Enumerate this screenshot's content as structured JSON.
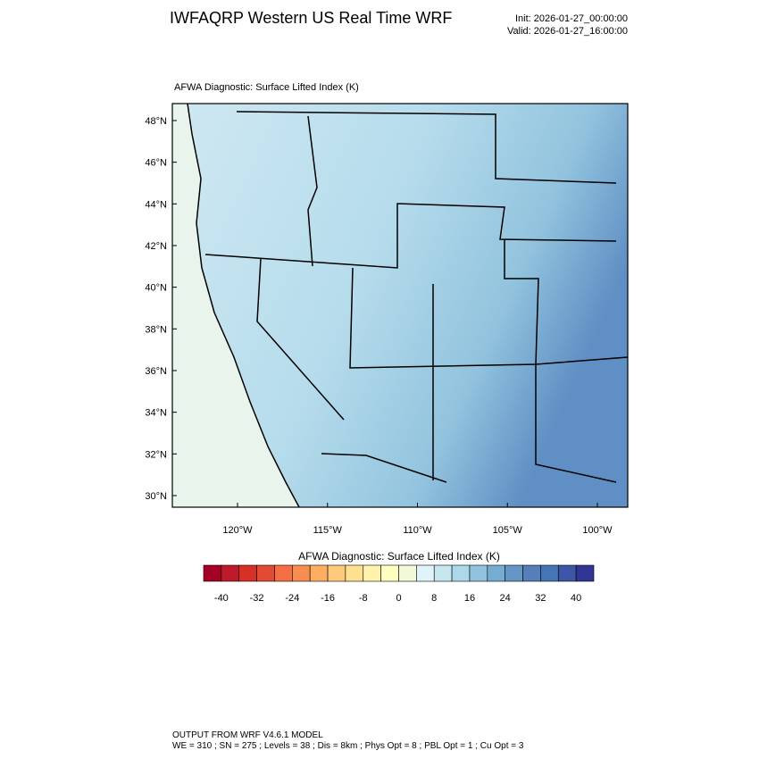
{
  "header": {
    "title": "IWFAQRP Western US Real Time WRF",
    "init": "Init: 2026-01-27_00:00:00",
    "valid": "Valid: 2026-01-27_16:00:00"
  },
  "plot": {
    "subtitle": "AFWA Diagnostic: Surface Lifted Index   (K)",
    "lat_labels": [
      "48°N",
      "46°N",
      "44°N",
      "42°N",
      "40°N",
      "38°N",
      "36°N",
      "34°N",
      "32°N",
      "30°N"
    ],
    "lon_labels": [
      "120°W",
      "115°W",
      "110°W",
      "105°W",
      "100°W"
    ]
  },
  "colorbar": {
    "title": "AFWA Diagnostic: Surface Lifted Index  (K)",
    "colors": [
      "#a50026",
      "#be1a2a",
      "#d73027",
      "#e34a33",
      "#f46d43",
      "#f88d52",
      "#fdae61",
      "#fec97a",
      "#fee090",
      "#fff2ac",
      "#ffffbf",
      "#f1f9d8",
      "#e0f3f8",
      "#c6e6f0",
      "#abd9e9",
      "#91c3de",
      "#74add1",
      "#6495c5",
      "#567eb9",
      "#4575b4",
      "#3d56a5",
      "#313695"
    ],
    "labels": [
      "-40",
      "-32",
      "-24",
      "-16",
      "-8",
      "0",
      "8",
      "16",
      "24",
      "32",
      "40"
    ]
  },
  "footer": {
    "line1": "OUTPUT FROM WRF V4.6.1 MODEL",
    "line2": "WE = 310 ; SN = 275 ; Levels = 38 ; Dis = 8km ; Phys Opt = 8 ; PBL Opt = 1 ; Cu Opt = 3"
  }
}
